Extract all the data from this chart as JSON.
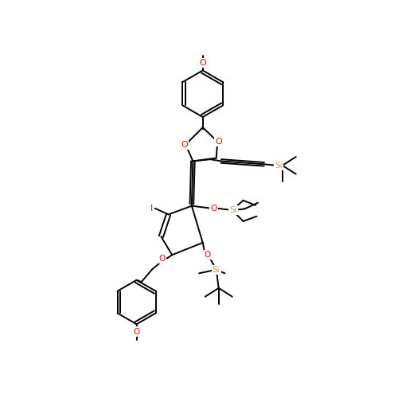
{
  "bg_color": "#ffffff",
  "bond_color": "#000000",
  "lw": 1.4,
  "atom_colors": {
    "O": "#ff0000",
    "Si": "#c8a060",
    "I": "#9400d3",
    "C": "#000000"
  },
  "figsize": [
    5.0,
    5.0
  ],
  "dpi": 100
}
